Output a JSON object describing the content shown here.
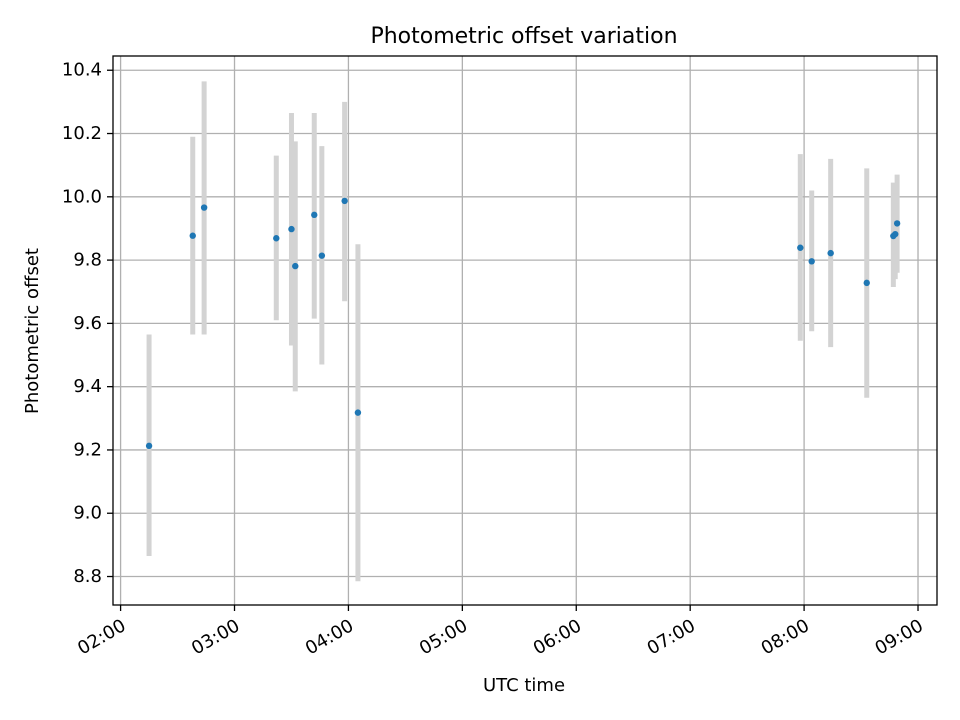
{
  "chart_data": {
    "type": "scatter",
    "title": "Photometric offset variation",
    "xlabel": "UTC time",
    "ylabel": "Photometric offset",
    "x_tick_labels": [
      "02:00",
      "03:00",
      "04:00",
      "05:00",
      "06:00",
      "07:00",
      "08:00",
      "09:00"
    ],
    "y_tick_labels": [
      "8.8",
      "9.0",
      "9.2",
      "9.4",
      "9.6",
      "9.8",
      "10.0",
      "10.2",
      "10.4"
    ],
    "xlim": [
      "01:56",
      "09:10"
    ],
    "ylim": [
      8.71,
      10.445
    ],
    "grid": true,
    "series": [
      {
        "color": "#1f77b4",
        "errorbar_color": "#d3d3d3",
        "points": [
          {
            "x": "02:15",
            "y": 9.213,
            "err_low": 8.865,
            "err_high": 9.565
          },
          {
            "x": "02:38",
            "y": 9.877,
            "err_low": 9.565,
            "err_high": 10.19
          },
          {
            "x": "02:44",
            "y": 9.966,
            "err_low": 9.565,
            "err_high": 10.365
          },
          {
            "x": "03:22",
            "y": 9.869,
            "err_low": 9.61,
            "err_high": 10.13
          },
          {
            "x": "03:30",
            "y": 9.898,
            "err_low": 9.53,
            "err_high": 10.265
          },
          {
            "x": "03:32",
            "y": 9.781,
            "err_low": 9.385,
            "err_high": 10.175
          },
          {
            "x": "03:42",
            "y": 9.943,
            "err_low": 9.615,
            "err_high": 10.265
          },
          {
            "x": "03:46",
            "y": 9.814,
            "err_low": 9.47,
            "err_high": 10.16
          },
          {
            "x": "03:58",
            "y": 9.987,
            "err_low": 9.67,
            "err_high": 10.3
          },
          {
            "x": "04:05",
            "y": 9.318,
            "err_low": 8.785,
            "err_high": 9.85
          },
          {
            "x": "07:58",
            "y": 9.839,
            "err_low": 9.545,
            "err_high": 10.135
          },
          {
            "x": "08:04",
            "y": 9.796,
            "err_low": 9.575,
            "err_high": 10.02
          },
          {
            "x": "08:14",
            "y": 9.822,
            "err_low": 9.525,
            "err_high": 10.12
          },
          {
            "x": "08:33",
            "y": 9.728,
            "err_low": 9.365,
            "err_high": 10.09
          },
          {
            "x": "08:47",
            "y": 9.876,
            "err_low": 9.715,
            "err_high": 10.045
          },
          {
            "x": "08:48",
            "y": 9.882,
            "err_low": 9.74,
            "err_high": 10.02
          },
          {
            "x": "08:49",
            "y": 9.916,
            "err_low": 9.76,
            "err_high": 10.07
          }
        ]
      }
    ]
  }
}
